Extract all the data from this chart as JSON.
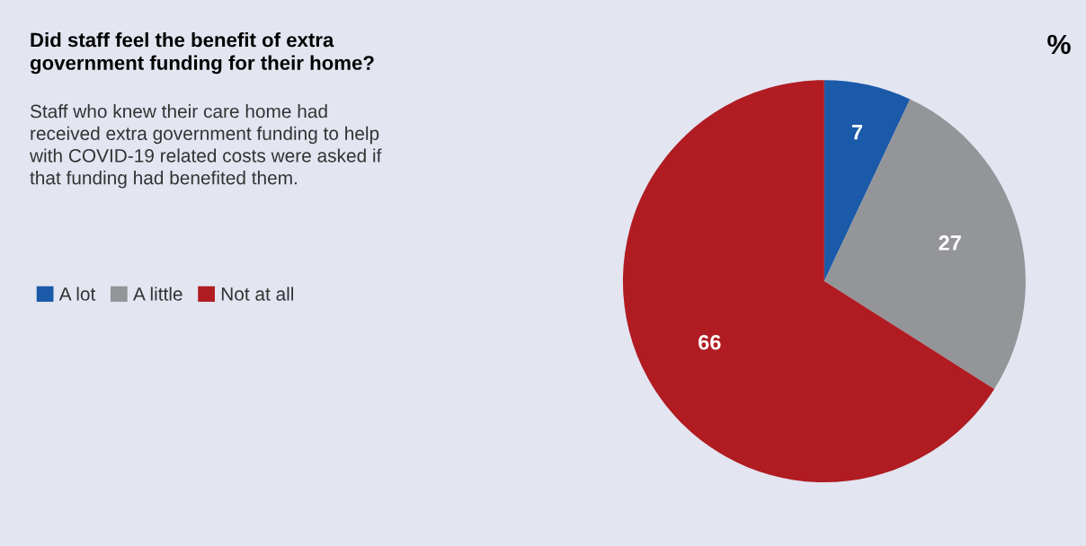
{
  "chart_data": {
    "type": "pie",
    "title": "Did staff feel the benefit of extra\ngovernment funding for their home?",
    "subtitle": "Staff who knew their care home had\nreceived extra government funding to help\nwith COVID-19 related costs were asked if\nthat funding had benefited them.",
    "categories": [
      "A lot",
      "A little",
      "Not at all"
    ],
    "values": [
      7,
      27,
      66
    ],
    "colors": [
      "#1a5aa8",
      "#939598",
      "#b01c22"
    ],
    "data_labels": true,
    "legend": "left",
    "annotations": [
      "%"
    ]
  }
}
